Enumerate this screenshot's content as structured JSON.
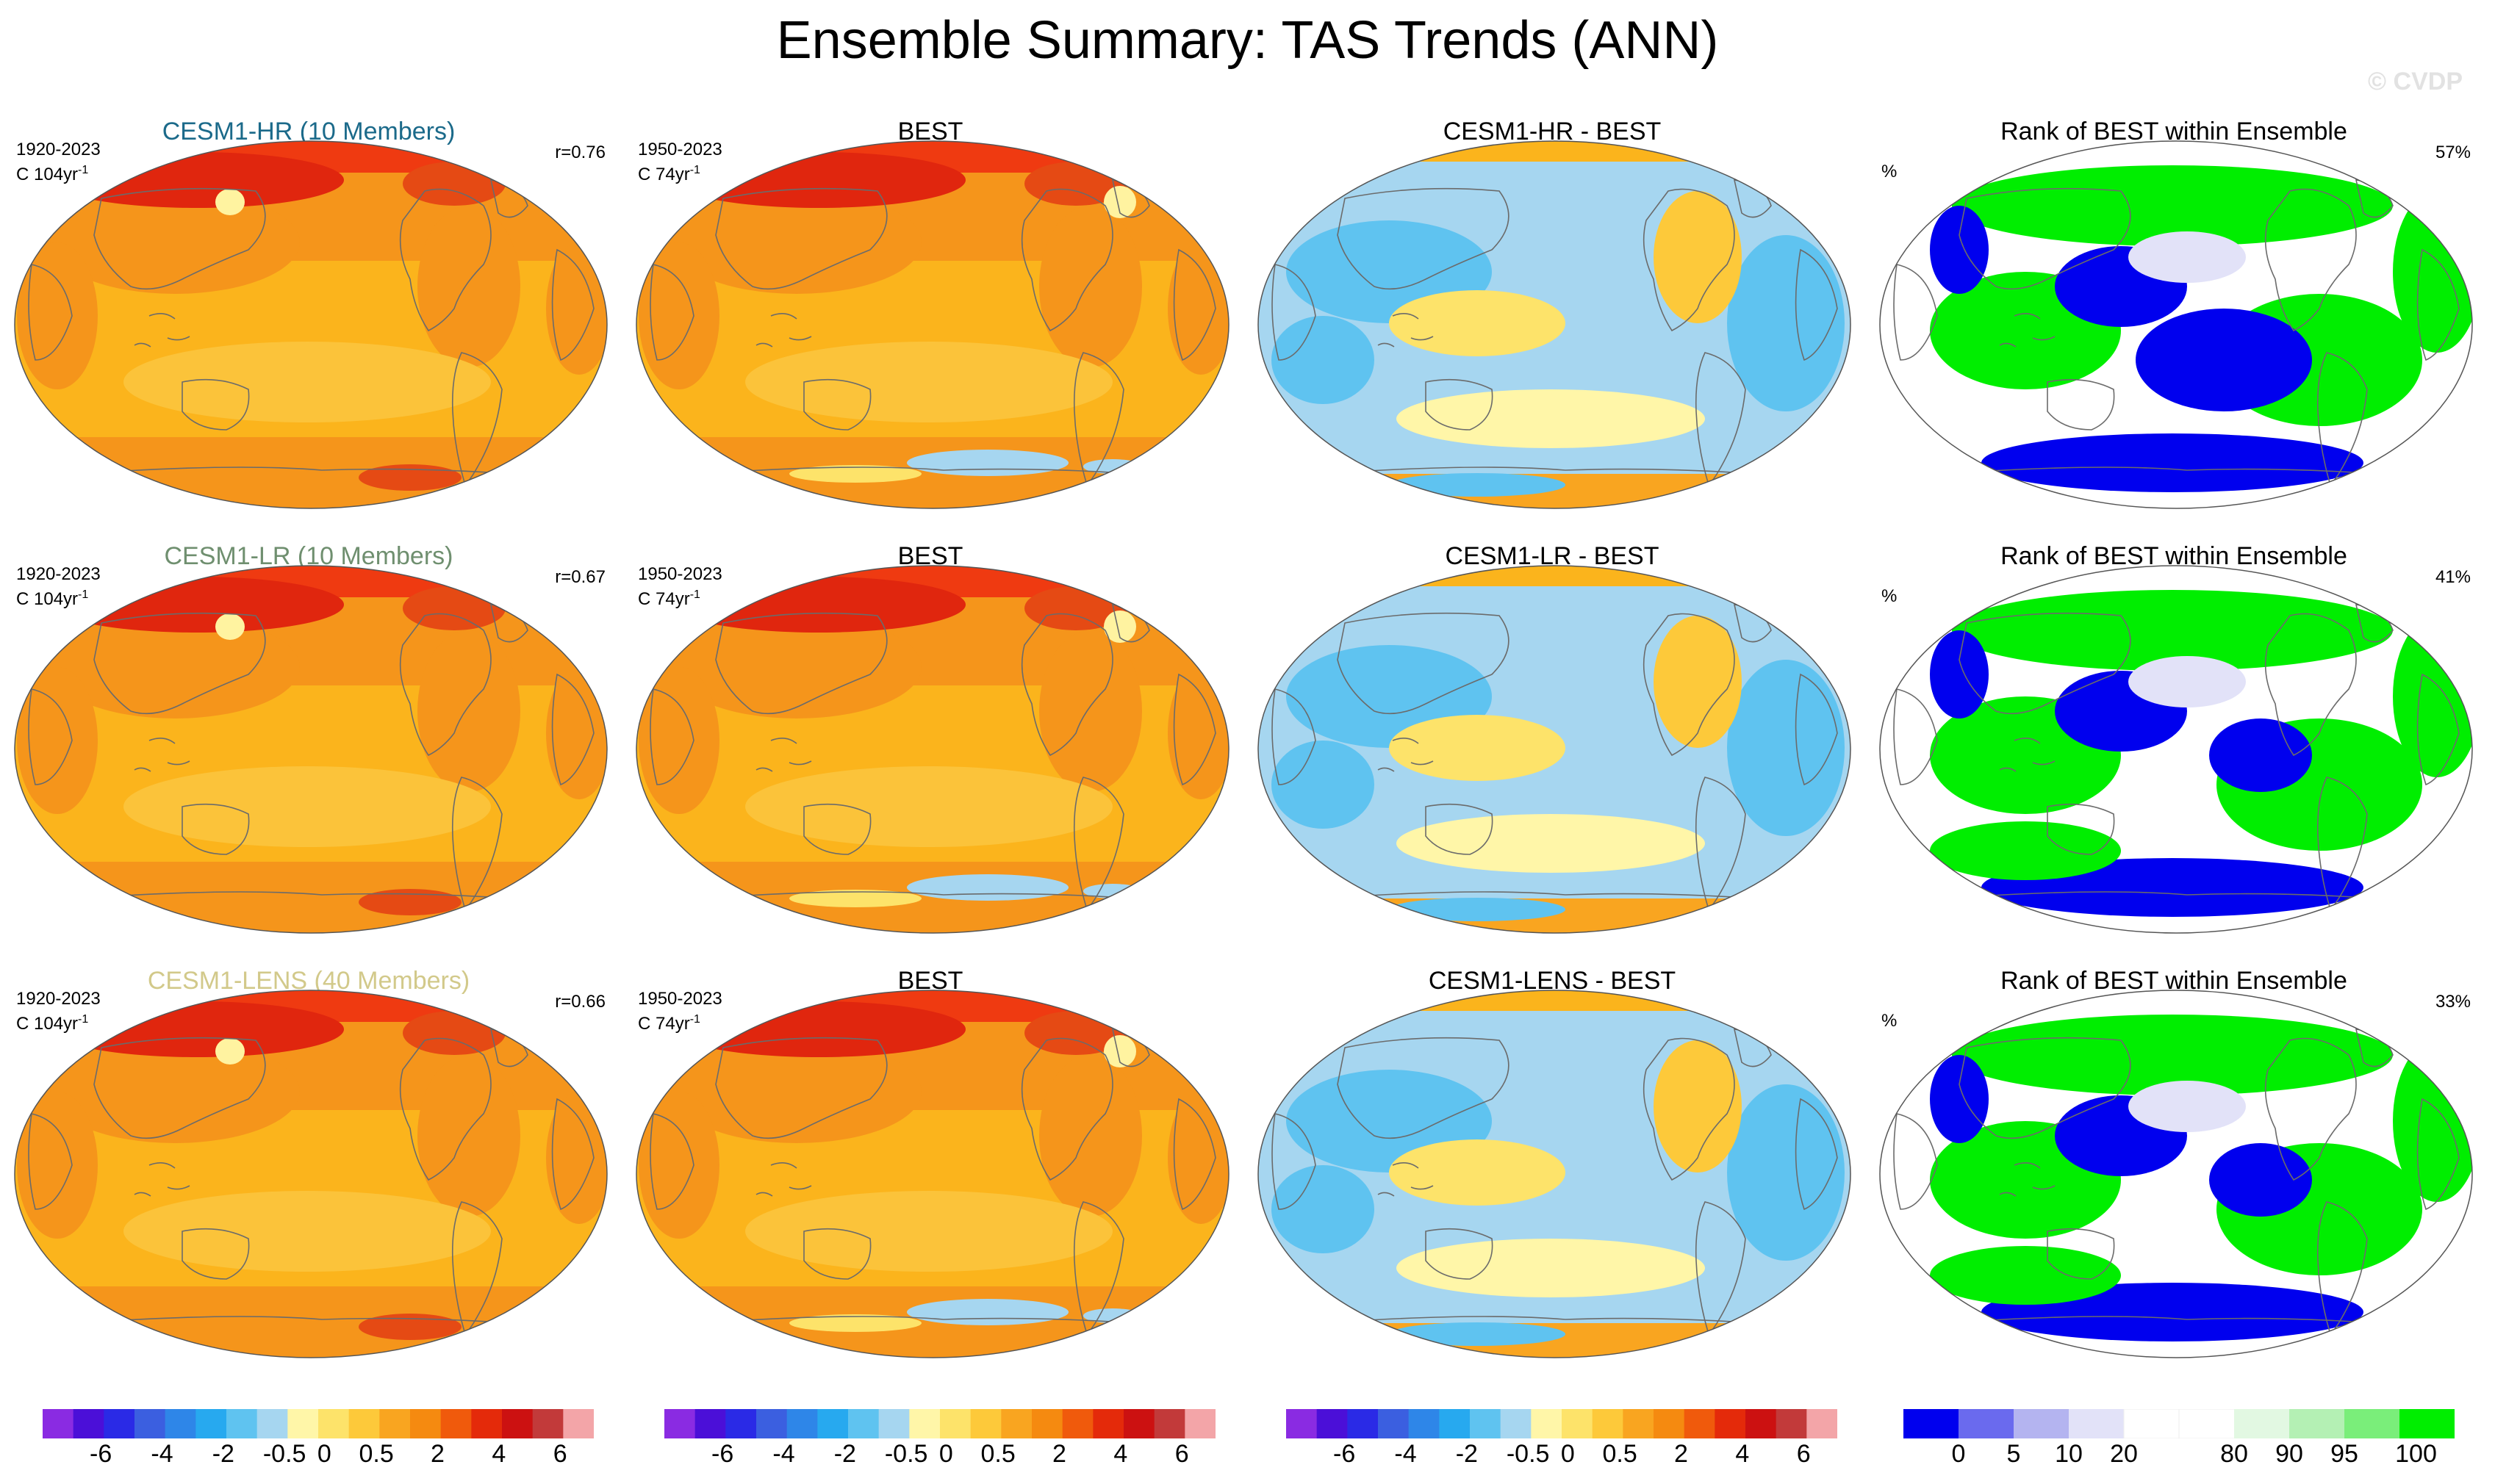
{
  "title": "Ensemble Summary: TAS Trends (ANN)",
  "watermark": "© CVDP",
  "rows": [
    {
      "model": {
        "title": "CESM1-HR (10 Members)",
        "title_color": "#1b6a8a",
        "period": "1920-2023",
        "units": "C 104yr",
        "units_sup": "-1",
        "r": "r=0.76"
      },
      "obs": {
        "title": "BEST",
        "period": "1950-2023",
        "units": "C 74yr",
        "units_sup": "-1"
      },
      "diff": {
        "title": "CESM1-HR - BEST"
      },
      "rank": {
        "title": "Rank of BEST within Ensemble",
        "units": "%",
        "pct": "57%"
      }
    },
    {
      "model": {
        "title": "CESM1-LR (10 Members)",
        "title_color": "#6f8f6f",
        "period": "1920-2023",
        "units": "C 104yr",
        "units_sup": "-1",
        "r": "r=0.67"
      },
      "obs": {
        "title": "BEST",
        "period": "1950-2023",
        "units": "C 74yr",
        "units_sup": "-1"
      },
      "diff": {
        "title": "CESM1-LR - BEST"
      },
      "rank": {
        "title": "Rank of BEST within Ensemble",
        "units": "%",
        "pct": "41%"
      }
    },
    {
      "model": {
        "title": "CESM1-LENS (40 Members)",
        "title_color": "#d2c98a",
        "period": "1920-2023",
        "units": "C 104yr",
        "units_sup": "-1",
        "r": "r=0.66"
      },
      "obs": {
        "title": "BEST",
        "period": "1950-2023",
        "units": "C 74yr",
        "units_sup": "-1"
      },
      "diff": {
        "title": "CESM1-LENS - BEST"
      },
      "rank": {
        "title": "Rank of BEST within Ensemble",
        "units": "%",
        "pct": "33%"
      }
    }
  ],
  "chart_data": {
    "type": "heatmap",
    "title": "Ensemble Summary: TAS Trends (ANN)",
    "variable": "TAS",
    "season": "ANN",
    "trend_colorbar": {
      "colors": [
        "#8a2be2",
        "#4b0fd8",
        "#2a2ae6",
        "#3b5fe0",
        "#2e86e8",
        "#27a9ef",
        "#5fc3f0",
        "#a6d6f0",
        "#fff6a8",
        "#fde36a",
        "#fdc93a",
        "#f9a520",
        "#f58a10",
        "#f05a0c",
        "#e42a0a",
        "#cc1111",
        "#c23a3a",
        "#f3a5a8"
      ],
      "labels": [
        "-6",
        "-4",
        "-2",
        "-0.5",
        "0",
        "0.5",
        "2",
        "4",
        "6"
      ]
    },
    "rank_colorbar": {
      "colors": [
        "#0000ee",
        "#6a6aee",
        "#b4b4f0",
        "#e2e2f8",
        "#ffffff",
        "#ffffff",
        "#e2f8e2",
        "#b4f0b4",
        "#7aee7a",
        "#00ee00"
      ],
      "labels": [
        "0",
        "5",
        "10",
        "20",
        "80",
        "90",
        "95",
        "100"
      ]
    },
    "panels": [
      {
        "row": 1,
        "column": "model",
        "name": "CESM1-HR",
        "members": 10,
        "period": "1920-2023",
        "r": 0.76
      },
      {
        "row": 1,
        "column": "obs",
        "name": "BEST",
        "period": "1950-2023"
      },
      {
        "row": 1,
        "column": "difference",
        "name": "CESM1-HR - BEST"
      },
      {
        "row": 1,
        "column": "rank",
        "rank_percent": 57
      },
      {
        "row": 2,
        "column": "model",
        "name": "CESM1-LR",
        "members": 10,
        "period": "1920-2023",
        "r": 0.67
      },
      {
        "row": 2,
        "column": "obs",
        "name": "BEST",
        "period": "1950-2023"
      },
      {
        "row": 2,
        "column": "difference",
        "name": "CESM1-LR - BEST"
      },
      {
        "row": 2,
        "column": "rank",
        "rank_percent": 41
      },
      {
        "row": 3,
        "column": "model",
        "name": "CESM1-LENS",
        "members": 40,
        "period": "1920-2023",
        "r": 0.66
      },
      {
        "row": 3,
        "column": "obs",
        "name": "BEST",
        "period": "1950-2023"
      },
      {
        "row": 3,
        "column": "difference",
        "name": "CESM1-LENS - BEST"
      },
      {
        "row": 3,
        "column": "rank",
        "rank_percent": 33
      }
    ]
  }
}
